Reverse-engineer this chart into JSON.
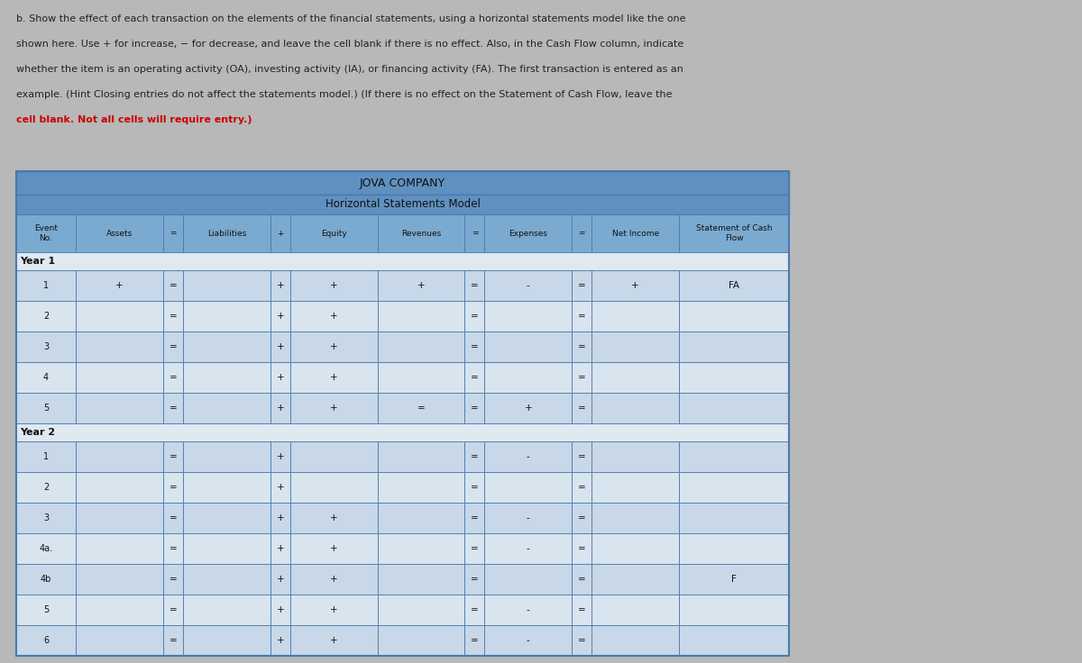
{
  "title1": "JOVA COMPANY",
  "title2": "Horizontal Statements Model",
  "outer_bg": "#b8b8b8",
  "table_bg": "#c8d4e0",
  "header_blue": "#6090c0",
  "header_blue2": "#7aaad0",
  "cell_light": "#c8d8e8",
  "cell_lighter": "#d8e4ee",
  "cell_white": "#e8eef4",
  "year_row_bg": "#d4dde8",
  "grid_color": "#4a7ab0",
  "grid_lw": 0.6,
  "text_instr_size": 7.8,
  "col_labels": [
    "Event\nNo.",
    "Assets",
    "=",
    "Liabilities",
    "+",
    "Equity",
    "Revenues",
    "=",
    "Expenses",
    "=",
    "Net Income",
    "Statement of Cash\nFlow"
  ],
  "col_rel_widths": [
    0.65,
    0.95,
    0.22,
    0.95,
    0.22,
    0.95,
    0.95,
    0.22,
    0.95,
    0.22,
    0.95,
    1.2
  ],
  "year1_events": [
    "1",
    "2",
    "3",
    "4",
    "5"
  ],
  "year2_events": [
    "1",
    "2",
    "3",
    "4a.",
    "4b",
    "5",
    "6"
  ],
  "row_data": {
    "Y1_1": [
      "+",
      "=",
      "",
      "+",
      "+",
      "+",
      "=",
      "-",
      "=",
      "+",
      "FA"
    ],
    "Y1_2": [
      "",
      "=",
      "",
      "+",
      "+",
      "",
      "=",
      "",
      "=",
      "",
      ""
    ],
    "Y1_3": [
      "",
      "=",
      "",
      "+",
      "+",
      "",
      "=",
      "",
      "=",
      "",
      ""
    ],
    "Y1_4": [
      "",
      "=",
      "",
      "+",
      "+",
      "",
      "=",
      "",
      "=",
      "",
      ""
    ],
    "Y1_5": [
      "",
      "=",
      "",
      "+",
      "+",
      "=",
      "=",
      "+",
      "=",
      "",
      ""
    ],
    "Y2_1": [
      "",
      "=",
      "",
      "+",
      "",
      "",
      "=",
      "-",
      "=",
      "",
      ""
    ],
    "Y2_2": [
      "",
      "=",
      "",
      "+",
      "",
      "",
      "=",
      "",
      "=",
      "",
      ""
    ],
    "Y2_3": [
      "",
      "=",
      "",
      "+",
      "+",
      "",
      "=",
      "-",
      "=",
      "",
      ""
    ],
    "Y2_4a": [
      "",
      "=",
      "",
      "+",
      "+",
      "",
      "=",
      "-",
      "=",
      "",
      ""
    ],
    "Y2_4b": [
      "",
      "=",
      "",
      "+",
      "+",
      "",
      "=",
      "",
      "=",
      "",
      "F"
    ],
    "Y2_5": [
      "",
      "=",
      "",
      "+",
      "+",
      "",
      "=",
      "-",
      "=",
      "",
      ""
    ],
    "Y2_6": [
      "",
      "=",
      "",
      "+",
      "+",
      "",
      "=",
      "-",
      "=",
      "",
      ""
    ]
  }
}
